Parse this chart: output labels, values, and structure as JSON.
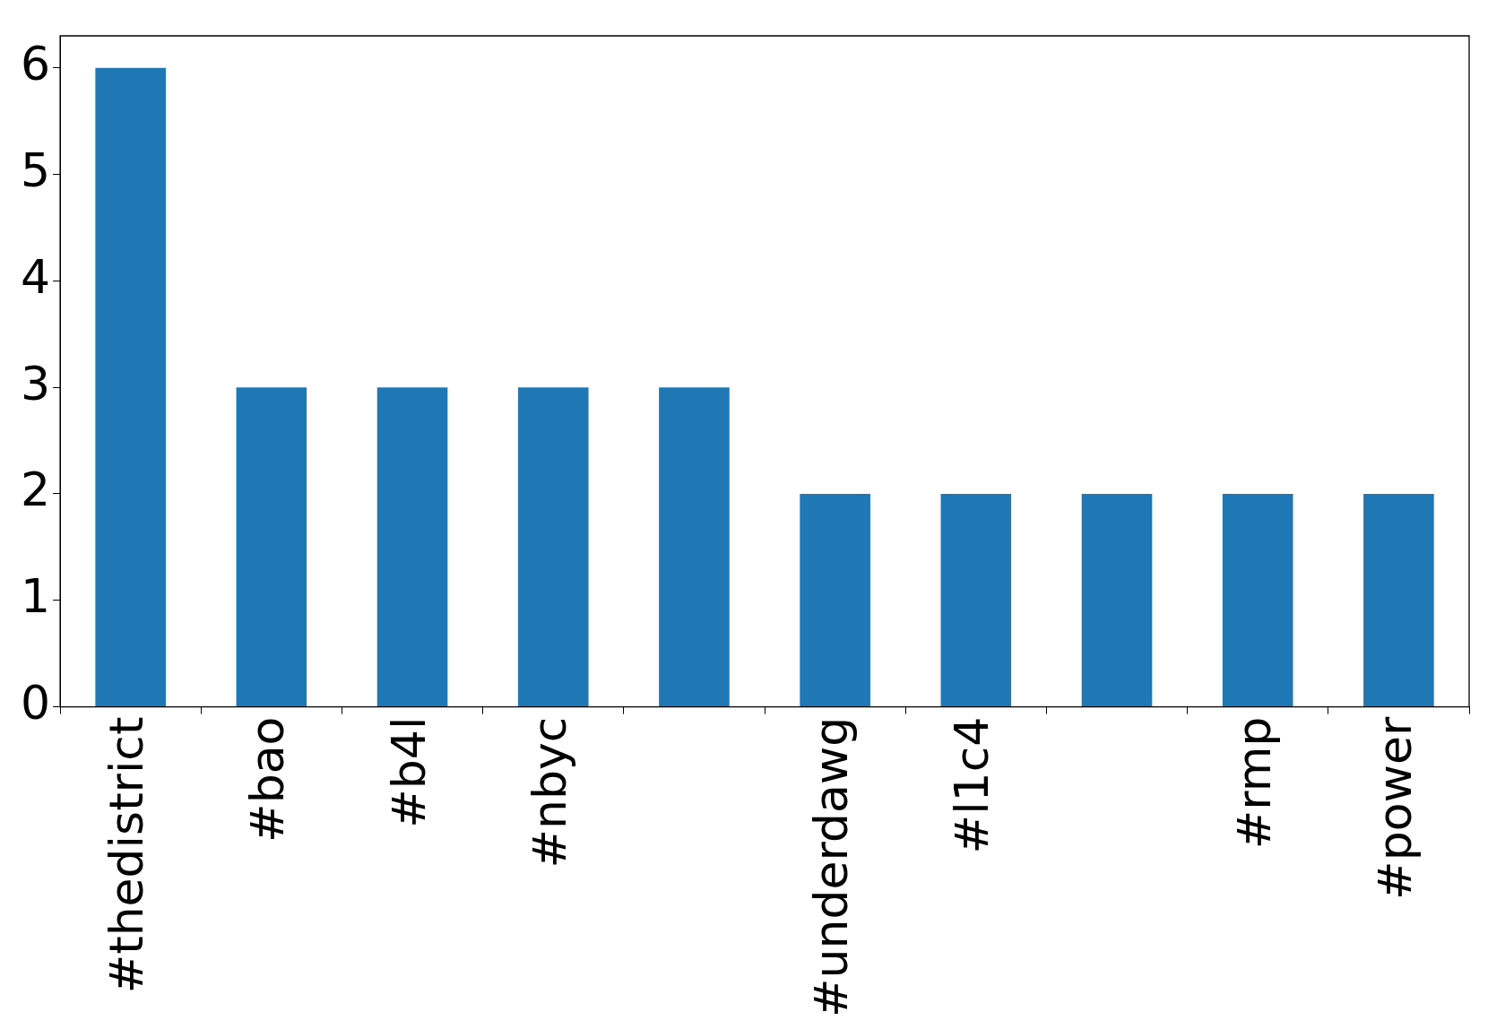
{
  "chart_data": {
    "type": "bar",
    "categories": [
      "#thedistrict",
      "#bao",
      "#b4l",
      "#nbyc",
      null,
      "#underdawg",
      "#l1c4",
      null,
      "#rmp",
      "#power"
    ],
    "values": [
      6,
      3,
      3,
      3,
      3,
      2,
      2,
      2,
      2,
      2
    ],
    "color": "#1f77b4",
    "ylim": [
      0,
      6.3
    ],
    "yticks": [
      0,
      1,
      2,
      3,
      4,
      5,
      6
    ],
    "grid": false,
    "legend": false
  }
}
